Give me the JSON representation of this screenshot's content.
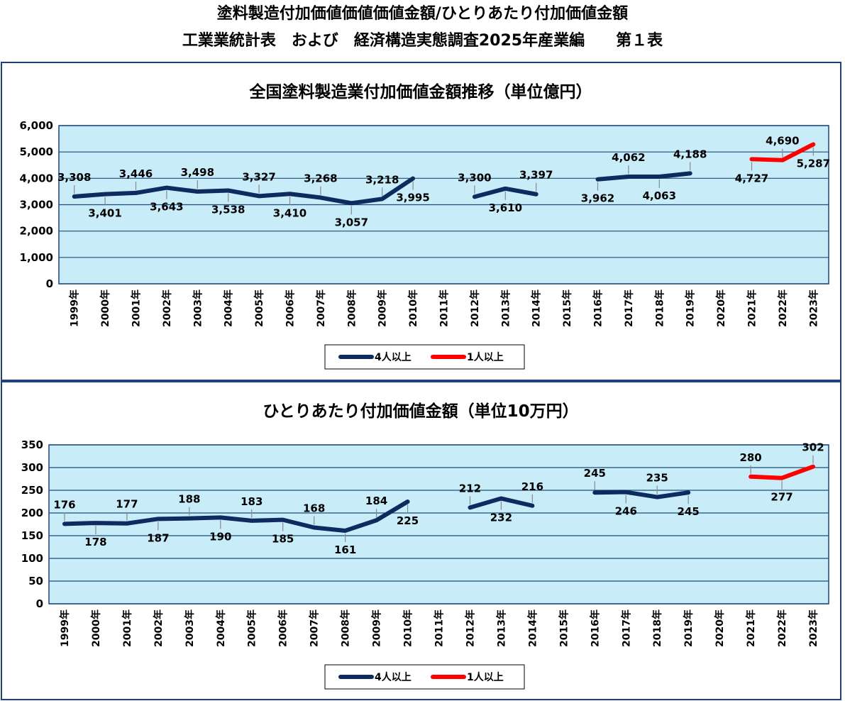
{
  "page": {
    "title_line1": "塗料製造付加価値価値価値金額/ひとりあたり付加価値金額",
    "title_line2": "工業業統計表　および　経済構造実態調査2025年産業編　　第１表"
  },
  "colors": {
    "plot_bg": "#c8ecf8",
    "series_4plus": "#0d2b5e",
    "series_1plus": "#ff0000",
    "border": "#1f3f8a",
    "grid": "#1f4f7a"
  },
  "chart_data": [
    {
      "type": "line",
      "title": "全国塗料製造業付加価値金額推移（単位億円）",
      "categories": [
        "1999年",
        "2000年",
        "2001年",
        "2002年",
        "2003年",
        "2004年",
        "2005年",
        "2006年",
        "2007年",
        "2008年",
        "2009年",
        "2010年",
        "2011年",
        "2012年",
        "2013年",
        "2014年",
        "2015年",
        "2016年",
        "2017年",
        "2018年",
        "2019年",
        "2020年",
        "2021年",
        "2022年",
        "2023年"
      ],
      "ylim": [
        0,
        6000
      ],
      "yticks": [
        0,
        1000,
        2000,
        3000,
        4000,
        5000,
        6000
      ],
      "ytick_labels": [
        "0",
        "1,000",
        "2,000",
        "3,000",
        "4,000",
        "5,000",
        "6,000"
      ],
      "grid": true,
      "legend_position": "bottom",
      "series": [
        {
          "name": "4人以上",
          "color": "#0d2b5e",
          "values": [
            3308,
            3401,
            3446,
            3643,
            3498,
            3538,
            3327,
            3410,
            3268,
            3057,
            3218,
            3995,
            null,
            3300,
            3610,
            3397,
            null,
            3962,
            4062,
            4063,
            4188,
            null,
            null,
            null,
            null
          ],
          "labels": [
            "3,308",
            "3,401",
            "3,446",
            "3,643",
            "3,498",
            "3,538",
            "3,327",
            "3,410",
            "3,268",
            "3,057",
            "3,218",
            "3,995",
            null,
            "3,300",
            "3,610",
            "3,397",
            null,
            "3,962",
            "4,062",
            "4,063",
            "4,188",
            null,
            null,
            null,
            null
          ]
        },
        {
          "name": "1人以上",
          "color": "#ff0000",
          "values": [
            null,
            null,
            null,
            null,
            null,
            null,
            null,
            null,
            null,
            null,
            null,
            null,
            null,
            null,
            null,
            null,
            null,
            null,
            null,
            null,
            null,
            null,
            4727,
            4690,
            5287
          ],
          "labels": [
            null,
            null,
            null,
            null,
            null,
            null,
            null,
            null,
            null,
            null,
            null,
            null,
            null,
            null,
            null,
            null,
            null,
            null,
            null,
            null,
            null,
            null,
            "4,727",
            "4,690",
            "5,287"
          ]
        }
      ]
    },
    {
      "type": "line",
      "title": "ひとりあたり付加価値金額（単位10万円）",
      "categories": [
        "1999年",
        "2000年",
        "2001年",
        "2002年",
        "2003年",
        "2004年",
        "2005年",
        "2006年",
        "2007年",
        "2008年",
        "2009年",
        "2010年",
        "2011年",
        "2012年",
        "2013年",
        "2014年",
        "2015年",
        "2016年",
        "2017年",
        "2018年",
        "2019年",
        "2020年",
        "2021年",
        "2022年",
        "2023年"
      ],
      "ylim": [
        0,
        350
      ],
      "yticks": [
        0,
        50,
        100,
        150,
        200,
        250,
        300,
        350
      ],
      "ytick_labels": [
        "0",
        "50",
        "100",
        "150",
        "200",
        "250",
        "300",
        "350"
      ],
      "grid": true,
      "legend_position": "bottom",
      "series": [
        {
          "name": "4人以上",
          "color": "#0d2b5e",
          "values": [
            176,
            178,
            177,
            187,
            188,
            190,
            183,
            185,
            168,
            161,
            184,
            225,
            null,
            212,
            232,
            216,
            null,
            245,
            246,
            235,
            245,
            null,
            null,
            null,
            null
          ],
          "labels": [
            "176",
            "178",
            "177",
            "187",
            "188",
            "190",
            "183",
            "185",
            "168",
            "161",
            "184",
            "225",
            null,
            "212",
            "232",
            "216",
            null,
            "245",
            "246",
            "235",
            "245",
            null,
            null,
            null,
            null
          ]
        },
        {
          "name": "1人以上",
          "color": "#ff0000",
          "values": [
            null,
            null,
            null,
            null,
            null,
            null,
            null,
            null,
            null,
            null,
            null,
            null,
            null,
            null,
            null,
            null,
            null,
            null,
            null,
            null,
            null,
            null,
            280,
            277,
            302
          ],
          "labels": [
            null,
            null,
            null,
            null,
            null,
            null,
            null,
            null,
            null,
            null,
            null,
            null,
            null,
            null,
            null,
            null,
            null,
            null,
            null,
            null,
            null,
            null,
            "280",
            "277",
            "302"
          ]
        }
      ]
    }
  ]
}
